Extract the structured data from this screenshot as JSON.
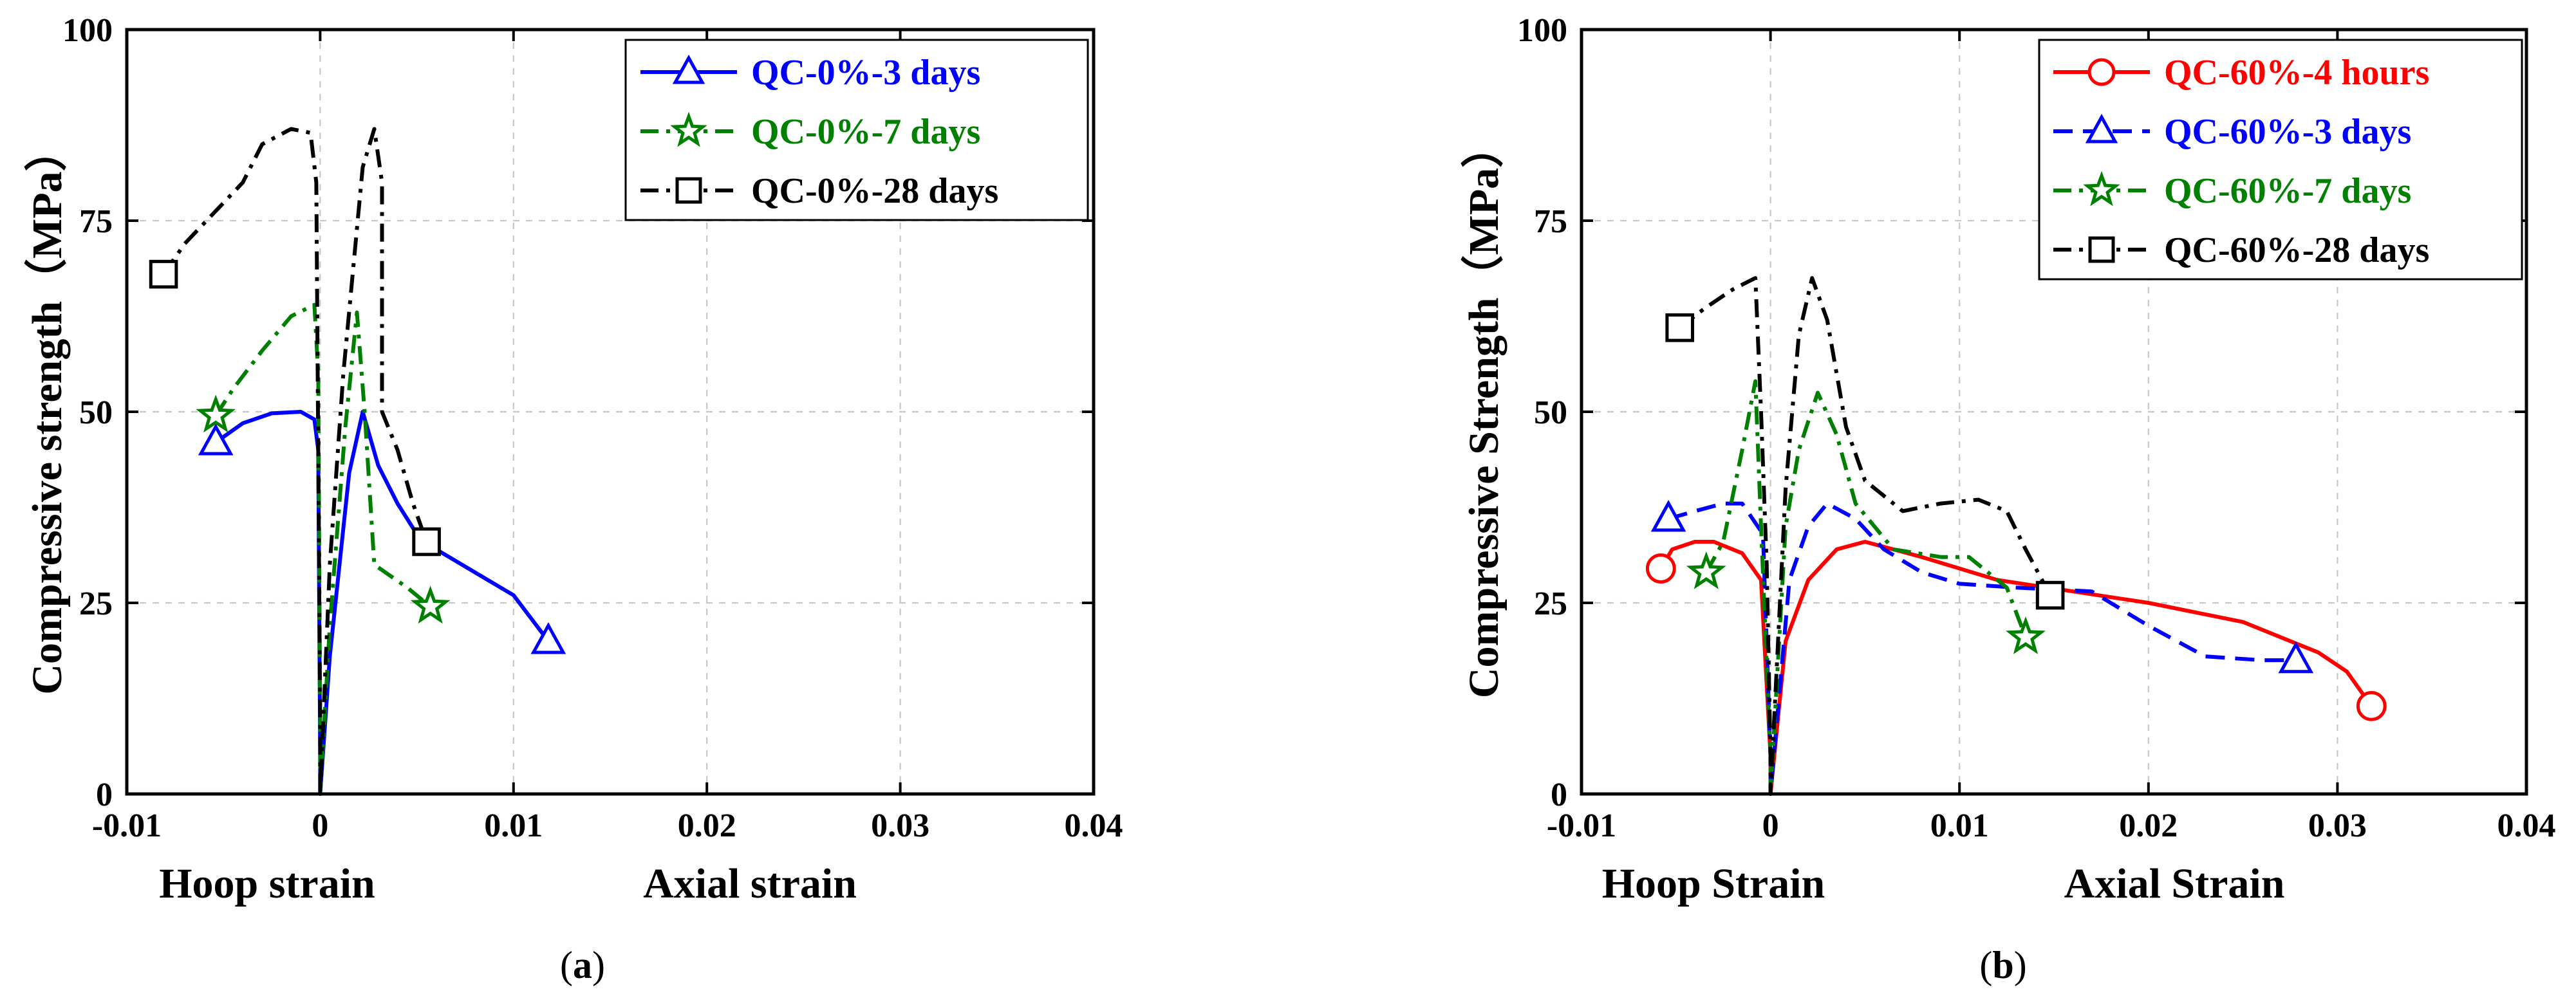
{
  "chart_data": [
    {
      "type": "line",
      "panel_label": "a",
      "xlim": [
        -0.01,
        0.04
      ],
      "ylim": [
        0,
        100
      ],
      "x_ticks": [
        "-0.01",
        "0",
        "0.01",
        "0.02",
        "0.03",
        "0.04"
      ],
      "y_ticks": [
        "0",
        "25",
        "50",
        "75",
        "100"
      ],
      "ylabel": "Compressive strength（MPa）",
      "xlabel_left": "Hoop strain",
      "xlabel_right": "Axial strain",
      "grid": true,
      "legend_position": "top-right",
      "series": [
        {
          "name": "QC-0%-3 days",
          "color": "#0000ff",
          "dash": "solid",
          "marker": "triangle",
          "points": [
            [
              -0.0054,
              46
            ],
            [
              -0.004,
              48.5
            ],
            [
              -0.0025,
              49.8
            ],
            [
              -0.001,
              50
            ],
            [
              -0.0003,
              49
            ],
            [
              -0.0001,
              45
            ],
            [
              0,
              5
            ],
            [
              0,
              0
            ],
            [
              0.0005,
              18
            ],
            [
              0.0015,
              42
            ],
            [
              0.0022,
              50
            ],
            [
              0.003,
              43
            ],
            [
              0.004,
              38
            ],
            [
              0.005,
              34
            ],
            [
              0.006,
              32
            ],
            [
              0.008,
              29
            ],
            [
              0.01,
              26
            ],
            [
              0.0118,
              20
            ]
          ],
          "markers_at": [
            [
              -0.0054,
              46
            ],
            [
              0.0118,
              20
            ]
          ]
        },
        {
          "name": "QC-0%-7 days",
          "color": "#008000",
          "dash": "dashdot",
          "marker": "star",
          "points": [
            [
              -0.0054,
              49.5
            ],
            [
              -0.0045,
              53
            ],
            [
              -0.003,
              58
            ],
            [
              -0.0015,
              62.5
            ],
            [
              -0.0003,
              64
            ],
            [
              -0.0001,
              55
            ],
            [
              0,
              10
            ],
            [
              0,
              0
            ],
            [
              0.0005,
              22
            ],
            [
              0.0013,
              48
            ],
            [
              0.0019,
              63
            ],
            [
              0.0023,
              50
            ],
            [
              0.0028,
              30
            ],
            [
              0.0045,
              27
            ],
            [
              0.0057,
              24.5
            ]
          ],
          "markers_at": [
            [
              -0.0054,
              49.5
            ],
            [
              0.0057,
              24.5
            ]
          ]
        },
        {
          "name": "QC-0%-28 days",
          "color": "#000000",
          "dash": "dashdot",
          "marker": "square",
          "points": [
            [
              -0.0081,
              68
            ],
            [
              -0.007,
              72
            ],
            [
              -0.0055,
              76
            ],
            [
              -0.004,
              80
            ],
            [
              -0.003,
              85
            ],
            [
              -0.0015,
              87
            ],
            [
              -0.0005,
              86.5
            ],
            [
              -0.0002,
              80
            ],
            [
              0,
              10
            ],
            [
              0,
              0
            ],
            [
              0.0005,
              30
            ],
            [
              0.0012,
              55
            ],
            [
              0.0022,
              82
            ],
            [
              0.0028,
              87
            ],
            [
              0.0032,
              80
            ],
            [
              0.0032,
              50
            ],
            [
              0.004,
              45
            ],
            [
              0.0048,
              38
            ],
            [
              0.0055,
              33
            ]
          ],
          "markers_at": [
            [
              -0.0081,
              68
            ],
            [
              0.0055,
              33
            ]
          ]
        }
      ]
    },
    {
      "type": "line",
      "panel_label": "b",
      "xlim": [
        -0.01,
        0.04
      ],
      "ylim": [
        0,
        100
      ],
      "x_ticks": [
        "-0.01",
        "0",
        "0.01",
        "0.02",
        "0.03",
        "0.04"
      ],
      "y_ticks": [
        "0",
        "25",
        "50",
        "75",
        "100"
      ],
      "ylabel": "Compressive Strength（MPa）",
      "xlabel_left": "Hoop Strain",
      "xlabel_right": "Axial Strain",
      "grid": true,
      "legend_position": "top-right",
      "series": [
        {
          "name": "QC-60%-4 hours",
          "color": "#ff0000",
          "dash": "solid",
          "marker": "circle",
          "points": [
            [
              -0.0058,
              29.5
            ],
            [
              -0.0052,
              32
            ],
            [
              -0.004,
              33
            ],
            [
              -0.003,
              33
            ],
            [
              -0.0015,
              31.5
            ],
            [
              -0.0005,
              28
            ],
            [
              0,
              5
            ],
            [
              0,
              0
            ],
            [
              0.0008,
              20
            ],
            [
              0.002,
              28
            ],
            [
              0.0035,
              32
            ],
            [
              0.005,
              33
            ],
            [
              0.008,
              31
            ],
            [
              0.012,
              28
            ],
            [
              0.016,
              26.5
            ],
            [
              0.02,
              25
            ],
            [
              0.025,
              22.5
            ],
            [
              0.029,
              18.5
            ],
            [
              0.0305,
              16
            ],
            [
              0.0318,
              11.5
            ]
          ],
          "markers_at": [
            [
              -0.0058,
              29.5
            ],
            [
              0.0318,
              11.5
            ]
          ]
        },
        {
          "name": "QC-60%-3 days",
          "color": "#0000ff",
          "dash": "dashed",
          "marker": "triangle",
          "points": [
            [
              -0.0054,
              36
            ],
            [
              -0.004,
              37
            ],
            [
              -0.0025,
              38
            ],
            [
              -0.0015,
              38
            ],
            [
              -0.0004,
              34
            ],
            [
              0,
              5
            ],
            [
              0,
              0
            ],
            [
              0.001,
              28
            ],
            [
              0.002,
              35
            ],
            [
              0.003,
              38
            ],
            [
              0.0045,
              36
            ],
            [
              0.006,
              32
            ],
            [
              0.008,
              29
            ],
            [
              0.01,
              27.5
            ],
            [
              0.013,
              27
            ],
            [
              0.017,
              26.5
            ],
            [
              0.02,
              22
            ],
            [
              0.023,
              18
            ],
            [
              0.026,
              17.5
            ],
            [
              0.0278,
              17.5
            ]
          ],
          "markers_at": [
            [
              -0.0054,
              36
            ],
            [
              0.0278,
              17.5
            ]
          ]
        },
        {
          "name": "QC-60%-7 days",
          "color": "#008000",
          "dash": "dashdot",
          "marker": "star",
          "points": [
            [
              -0.0034,
              29
            ],
            [
              -0.0025,
              33
            ],
            [
              -0.0015,
              45
            ],
            [
              -0.0008,
              54
            ],
            [
              -0.0005,
              35
            ],
            [
              0,
              5
            ],
            [
              0,
              0
            ],
            [
              0.0008,
              35
            ],
            [
              0.0015,
              45
            ],
            [
              0.0025,
              52.5
            ],
            [
              0.0035,
              47
            ],
            [
              0.0045,
              38
            ],
            [
              0.0065,
              32
            ],
            [
              0.009,
              31
            ],
            [
              0.0105,
              31
            ],
            [
              0.0125,
              27
            ],
            [
              0.0135,
              20.5
            ]
          ],
          "markers_at": [
            [
              -0.0034,
              29
            ],
            [
              0.0135,
              20.5
            ]
          ]
        },
        {
          "name": "QC-60%-28 days",
          "color": "#000000",
          "dash": "dashdot",
          "marker": "square",
          "points": [
            [
              -0.0048,
              61
            ],
            [
              -0.0035,
              63.5
            ],
            [
              -0.002,
              66
            ],
            [
              -0.0008,
              67.5
            ],
            [
              -0.0005,
              50
            ],
            [
              -0.0002,
              30
            ],
            [
              0,
              5
            ],
            [
              0,
              0
            ],
            [
              0.0008,
              40
            ],
            [
              0.0015,
              60
            ],
            [
              0.0022,
              67.5
            ],
            [
              0.003,
              62
            ],
            [
              0.004,
              48
            ],
            [
              0.005,
              41
            ],
            [
              0.007,
              37
            ],
            [
              0.009,
              38
            ],
            [
              0.011,
              38.5
            ],
            [
              0.0125,
              37
            ],
            [
              0.0135,
              32
            ],
            [
              0.0148,
              26
            ]
          ],
          "markers_at": [
            [
              -0.0048,
              61
            ],
            [
              0.0148,
              26
            ]
          ]
        }
      ]
    }
  ]
}
